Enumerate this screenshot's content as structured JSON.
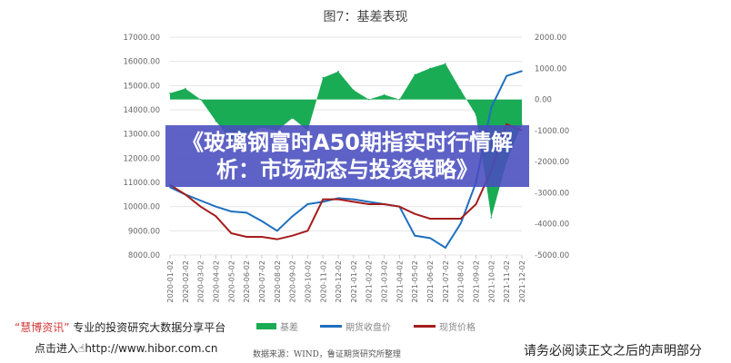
{
  "chart_data": {
    "type": "line",
    "title": "图7：基差表现",
    "left_axis": {
      "ylim": [
        8000,
        17000
      ],
      "ticks": [
        "17000.00",
        "16000.00",
        "15000.00",
        "14000.00",
        "13000.00",
        "12000.00",
        "11000.00",
        "10000.00",
        "9000.00",
        "8000.00"
      ]
    },
    "right_axis": {
      "ylim": [
        -5000,
        2000
      ],
      "ticks": [
        "2000.00",
        "1000.00",
        "0.00",
        "-1000.00",
        "-2000.00",
        "-3000.00",
        "-4000.00",
        "-5000.00"
      ]
    },
    "x": [
      "2020-01-02",
      "2020-02-02",
      "2020-03-02",
      "2020-04-02",
      "2020-05-02",
      "2020-06-02",
      "2020-07-02",
      "2020-08-02",
      "2020-09-02",
      "2020-10-02",
      "2020-11-02",
      "2020-12-02",
      "2021-01-02",
      "2021-02-02",
      "2021-03-02",
      "2021-04-02",
      "2021-05-02",
      "2021-06-02",
      "2021-07-02",
      "2021-08-02",
      "2021-09-02",
      "2021-10-02",
      "2021-11-02",
      "2021-12-02"
    ],
    "series": [
      {
        "name": "基差",
        "type": "area",
        "axis": "right",
        "color": "#1aab55",
        "values": [
          200,
          350,
          0,
          -700,
          -1300,
          -1100,
          -900,
          -1000,
          -600,
          -1000,
          700,
          900,
          300,
          0,
          150,
          0,
          800,
          1000,
          1150,
          300,
          -500,
          -3800,
          -2000,
          -800
        ]
      },
      {
        "name": "期货收盘价",
        "type": "line",
        "axis": "left",
        "color": "#1f6fbf",
        "values": [
          10800,
          10500,
          10250,
          10000,
          9800,
          9750,
          9400,
          9000,
          9600,
          10100,
          10200,
          10350,
          10300,
          10200,
          10100,
          10000,
          8800,
          8700,
          8300,
          9300,
          11000,
          14100,
          15400,
          15600
        ]
      },
      {
        "name": "现货价格",
        "type": "line",
        "axis": "left",
        "color": "#a51c1c",
        "values": [
          10900,
          10500,
          10000,
          9600,
          8900,
          8750,
          8750,
          8650,
          8800,
          9000,
          10300,
          10300,
          10200,
          10100,
          10100,
          10000,
          9700,
          9500,
          9500,
          9500,
          10100,
          11500,
          13400,
          13150
        ]
      }
    ],
    "grid": true,
    "legend": "bottom"
  },
  "banner": {
    "text": "《玻璃钢富时A50期指实时行情解析：市场动态与投资策略》"
  },
  "footer": {
    "brand_quote": "“慧博资讯”",
    "brand_tagline": "专业的投资研究大数据分享平台",
    "link_prefix": "点击进入",
    "link_url": "http://www.hibor.com.cn",
    "source": "数据来源：WIND，鲁证期货研究所整理",
    "notice": "请务必阅读正文之后的声明部分"
  }
}
